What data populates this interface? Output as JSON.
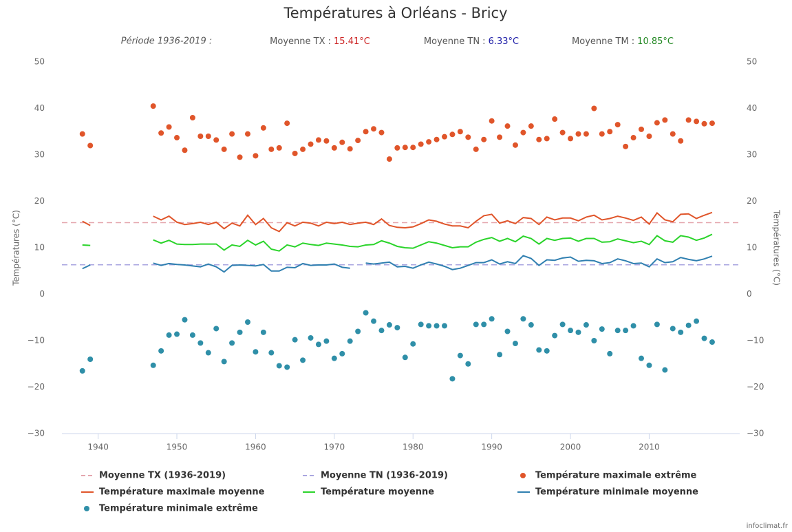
{
  "chart_data": {
    "type": "line",
    "title": "Températures à Orléans - Bricy",
    "subtitle": "Période 1936-2019 :",
    "averages": [
      {
        "label": "Moyenne TX :",
        "value": 15.41,
        "value_label": "15.41°C",
        "label_color": "#cc2222",
        "legend": "Moyenne TX (1936-2019)",
        "line_color": "#e4a6ae"
      },
      {
        "label": "Moyenne TN :",
        "value": 6.33,
        "value_label": "6.33°C",
        "label_color": "#2222aa",
        "legend": "Moyenne TN (1936-2019)",
        "line_color": "#a9a6e0"
      },
      {
        "label": "Moyenne TM :",
        "value": 10.85,
        "value_label": "10.85°C",
        "label_color": "#228822"
      }
    ],
    "y_label": "Températures (°C)",
    "y2_label": "Températures (°C)",
    "credit": "infoclimat.fr",
    "xlim": [
      1935.4,
      2021.5
    ],
    "xticks": [
      1940,
      1950,
      1960,
      1970,
      1980,
      1990,
      2000,
      2010
    ],
    "ylim": [
      -30,
      50
    ],
    "yticks": [
      {
        "value": -30,
        "label": "−30"
      },
      {
        "value": -20,
        "label": "−20"
      },
      {
        "value": -10,
        "label": "−10"
      },
      0,
      10,
      20,
      30,
      40,
      50
    ],
    "y2lim": [
      -30,
      50
    ],
    "y2ticks": [
      {
        "value": -30,
        "label": "−30"
      },
      {
        "value": -20,
        "label": "−20"
      },
      {
        "value": -10,
        "label": "−10"
      },
      0,
      10,
      20,
      30,
      40,
      50
    ],
    "grid": false,
    "x": [
      1938,
      1939,
      1940,
      1941,
      1942,
      1943,
      1944,
      1945,
      1946,
      1947,
      1948,
      1949,
      1950,
      1951,
      1952,
      1953,
      1954,
      1955,
      1956,
      1957,
      1958,
      1959,
      1960,
      1961,
      1962,
      1963,
      1964,
      1965,
      1966,
      1967,
      1968,
      1969,
      1970,
      1971,
      1972,
      1973,
      1974,
      1975,
      1976,
      1977,
      1978,
      1979,
      1980,
      1981,
      1982,
      1983,
      1984,
      1985,
      1986,
      1987,
      1988,
      1989,
      1990,
      1991,
      1992,
      1993,
      1994,
      1995,
      1996,
      1997,
      1998,
      1999,
      2000,
      2001,
      2002,
      2003,
      2004,
      2005,
      2006,
      2007,
      2008,
      2009,
      2010,
      2011,
      2012,
      2013,
      2014,
      2015,
      2016,
      2017,
      2018
    ],
    "series": [
      {
        "name": "Température maximale extrême",
        "kind": "scatter",
        "color": "#e0552a",
        "values": [
          34.5,
          32,
          null,
          null,
          null,
          null,
          null,
          null,
          null,
          40.5,
          34.7,
          36,
          33.7,
          31,
          38,
          34,
          34,
          33.2,
          31.2,
          34.5,
          29.5,
          34.5,
          29.8,
          35.8,
          31.2,
          31.5,
          36.8,
          30.3,
          31.2,
          32.3,
          33.2,
          33,
          31.5,
          32.7,
          31.3,
          33.1,
          35,
          35.6,
          34.8,
          29.1,
          31.5,
          31.6,
          31.6,
          32.3,
          32.8,
          33.3,
          33.9,
          34.4,
          35,
          33.8,
          31.2,
          33.3,
          37.3,
          33.8,
          36.2,
          32.1,
          34.8,
          36.2,
          33.3,
          33.5,
          37.7,
          34.8,
          33.5,
          34.5,
          34.5,
          40,
          34.5,
          35,
          36.5,
          31.8,
          33.7,
          35.5,
          34,
          36.9,
          37.5,
          34.5,
          33,
          37.5,
          37.2,
          36.7,
          36.8
        ]
      },
      {
        "name": "Température maximale moyenne",
        "kind": "line",
        "color": "#e0552a",
        "values": [
          15.7,
          14.8,
          null,
          null,
          null,
          null,
          null,
          null,
          null,
          16.8,
          16,
          16.8,
          15.5,
          15,
          15.2,
          15.5,
          15,
          15.5,
          14.1,
          15.3,
          14.7,
          17,
          15,
          16.3,
          14.3,
          13.5,
          15.4,
          14.7,
          15.5,
          15.3,
          14.7,
          15.5,
          15.2,
          15.5,
          15,
          15.3,
          15.5,
          15,
          16.2,
          14.8,
          14.4,
          14.3,
          14.5,
          15.2,
          16,
          15.7,
          15.1,
          14.7,
          14.7,
          14.3,
          15.7,
          16.9,
          17.2,
          15.3,
          15.8,
          15.2,
          16.5,
          16.3,
          15,
          16.6,
          16,
          16.4,
          16.4,
          15.8,
          16.6,
          17,
          16,
          16.3,
          16.8,
          16.4,
          15.9,
          16.6,
          15.1,
          17.5,
          16,
          15.6,
          17.2,
          17.3,
          16.3,
          17,
          17.6
        ]
      },
      {
        "name": "Température moyenne",
        "kind": "line",
        "color": "#2bd42b",
        "values": [
          10.6,
          10.5,
          null,
          null,
          null,
          null,
          null,
          null,
          null,
          11.7,
          11,
          11.6,
          10.8,
          10.7,
          10.7,
          10.8,
          10.8,
          10.8,
          9.5,
          10.6,
          10.3,
          11.6,
          10.6,
          11.4,
          9.7,
          9.3,
          10.6,
          10.2,
          11,
          10.7,
          10.5,
          11,
          10.8,
          10.6,
          10.3,
          10.2,
          10.6,
          10.7,
          11.5,
          11,
          10.3,
          10,
          9.9,
          10.6,
          11.3,
          11,
          10.5,
          10,
          10.2,
          10.2,
          11.2,
          11.8,
          12.2,
          11.4,
          12,
          11.3,
          12.5,
          12,
          10.8,
          12,
          11.6,
          12,
          12.1,
          11.4,
          12,
          12,
          11.2,
          11.3,
          11.9,
          11.5,
          11.1,
          11.4,
          10.7,
          12.6,
          11.5,
          11.2,
          12.6,
          12.3,
          11.6,
          12.1,
          12.9
        ]
      },
      {
        "name": "Température minimale moyenne",
        "kind": "line",
        "color": "#2f7fb0",
        "values": [
          5.5,
          6.3,
          null,
          null,
          null,
          null,
          null,
          null,
          null,
          6.7,
          6.2,
          6.6,
          6.4,
          6.3,
          6.1,
          5.9,
          6.5,
          5.9,
          4.8,
          6.2,
          6.3,
          6.2,
          6.1,
          6.4,
          5,
          5,
          5.8,
          5.7,
          6.6,
          6.2,
          6.3,
          6.3,
          6.5,
          5.8,
          5.6,
          null,
          6.7,
          6.5,
          6.7,
          6.9,
          5.9,
          6,
          5.6,
          6.3,
          6.9,
          6.5,
          6,
          5.3,
          5.6,
          6.2,
          6.8,
          6.8,
          7.4,
          6.5,
          7,
          6.6,
          8.3,
          7.7,
          6.2,
          7.4,
          7.3,
          7.8,
          8,
          7.1,
          7.3,
          7.2,
          6.6,
          6.8,
          7.6,
          7.2,
          6.6,
          6.7,
          5.9,
          7.6,
          6.8,
          7,
          7.9,
          7.5,
          7.2,
          7.6,
          8.2
        ]
      },
      {
        "name": "Température minimale extrême",
        "kind": "scatter",
        "color": "#2f8fa8",
        "values": [
          -16.5,
          -14,
          null,
          null,
          null,
          null,
          null,
          null,
          null,
          -15.3,
          -12.2,
          -8.8,
          -8.6,
          -5.5,
          -8.8,
          -10.5,
          -12.6,
          -7.4,
          -14.5,
          -10.5,
          -8.2,
          -6,
          -12.4,
          -8.2,
          -12.6,
          -15.4,
          -15.7,
          -9.8,
          -14.2,
          -9.4,
          -10.8,
          -10.1,
          -13.8,
          -12.8,
          -10.1,
          -8,
          -4,
          -5.8,
          -7.8,
          -6.6,
          -7.2,
          -13.6,
          -10.7,
          -6.5,
          -6.8,
          -6.8,
          -6.8,
          -18.2,
          -13.2,
          -15,
          -6.5,
          -6.5,
          -5.3,
          -13,
          -8,
          -10.6,
          -5.3,
          -6.6,
          -12,
          -12.2,
          -8.9,
          -6.5,
          -7.8,
          -8.2,
          -6.6,
          -10,
          -7.5,
          -12.8,
          -7.8,
          -7.8,
          -6.8,
          -13.8,
          -15.3,
          -6.5,
          -16.3,
          -7.4,
          -8.2,
          -6.7,
          -5.8,
          -9.5,
          -10.3
        ]
      }
    ]
  }
}
